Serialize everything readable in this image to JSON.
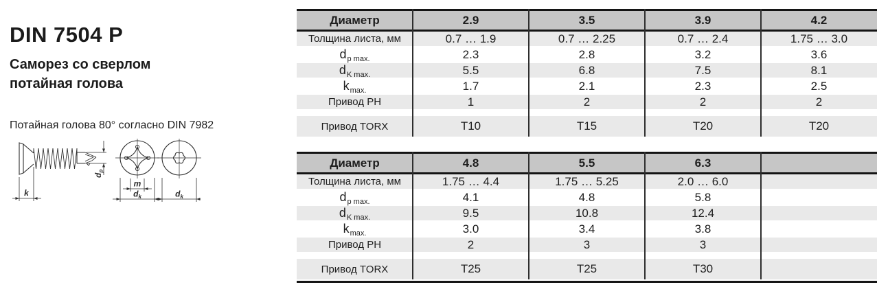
{
  "colors": {
    "header-gray": "#c6c6c6",
    "row-gray": "#e9e9e9",
    "rule-black": "#141414",
    "divider-gray": "#2e2e2e",
    "text-dark": "#1e1e1e"
  },
  "left_panel": {
    "title": "DIN 7504 P",
    "subtitle_line1": "Саморез со сверлом",
    "subtitle_line2": "потайная голова",
    "note": "Потайная голова 80° согласно DIN 7982",
    "drawing_labels": {
      "k": "k",
      "m": "m",
      "d": "d",
      "dk_sub": "k",
      "dp_sub": "p"
    }
  },
  "tables": [
    {
      "header_label": "Диаметр",
      "columns": [
        "2.9",
        "3.5",
        "3.9",
        "4.2"
      ],
      "rows": [
        {
          "name": "sheet-thickness",
          "label": "Толщина листа, мм",
          "values": [
            "0.7 … 1.9",
            "0.7 … 2.25",
            "0.7 … 2.4",
            "1.75 … 3.0"
          ]
        },
        {
          "name": "dp-max",
          "label_main": "d",
          "label_sub": "p max.",
          "values": [
            "2.3",
            "2.8",
            "3.2",
            "3.6"
          ]
        },
        {
          "name": "dk-max",
          "label_main": "d",
          "label_sub": "K max.",
          "values": [
            "5.5",
            "6.8",
            "7.5",
            "8.1"
          ]
        },
        {
          "name": "k-max",
          "label_main": "k",
          "label_sub": "max.",
          "values": [
            "1.7",
            "2.1",
            "2.3",
            "2.5"
          ]
        },
        {
          "name": "drive-ph",
          "label": "Привод PH",
          "values": [
            "1",
            "2",
            "2",
            "2"
          ]
        },
        {
          "name": "drive-torx",
          "label": "Привод TORX",
          "values": [
            "T10",
            "T15",
            "T20",
            "T20"
          ]
        }
      ]
    },
    {
      "header_label": "Диаметр",
      "columns": [
        "4.8",
        "5.5",
        "6.3",
        ""
      ],
      "rows": [
        {
          "name": "sheet-thickness",
          "label": "Толщина листа, мм",
          "values": [
            "1.75 … 4.4",
            "1.75 … 5.25",
            "2.0 … 6.0",
            ""
          ]
        },
        {
          "name": "dp-max",
          "label_main": "d",
          "label_sub": "p max.",
          "values": [
            "4.1",
            "4.8",
            "5.8",
            ""
          ]
        },
        {
          "name": "dk-max",
          "label_main": "d",
          "label_sub": "K max.",
          "values": [
            "9.5",
            "10.8",
            "12.4",
            ""
          ]
        },
        {
          "name": "k-max",
          "label_main": "k",
          "label_sub": "max.",
          "values": [
            "3.0",
            "3.4",
            "3.8",
            ""
          ]
        },
        {
          "name": "drive-ph",
          "label": "Привод PH",
          "values": [
            "2",
            "3",
            "3",
            ""
          ]
        },
        {
          "name": "drive-torx",
          "label": "Привод TORX",
          "values": [
            "T25",
            "T25",
            "T30",
            ""
          ]
        }
      ]
    }
  ]
}
